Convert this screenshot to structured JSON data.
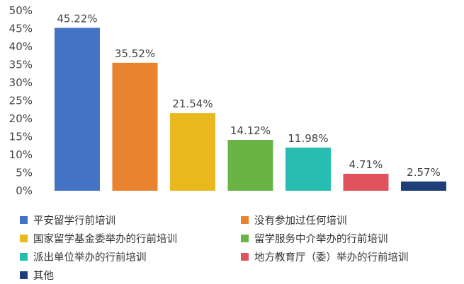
{
  "chart_data": {
    "type": "bar",
    "categories": [
      "平安留学行前培训",
      "没有参加过任何培训",
      "国家留学基金委举办的行前培训",
      "留学服务中介举办的行前培训",
      "派出单位举办的行前培训",
      "地方教育厅（委）举办的行前培训",
      "其他"
    ],
    "values": [
      45.22,
      35.52,
      21.54,
      14.12,
      11.98,
      4.71,
      2.57
    ],
    "data_labels": [
      "45.22%",
      "35.52%",
      "21.54%",
      "14.12%",
      "11.98%",
      "4.71%",
      "2.57%"
    ],
    "colors": [
      "#4472c4",
      "#e8832f",
      "#e9b81e",
      "#6ab446",
      "#27bdb0",
      "#e0525c",
      "#1e3f7a"
    ],
    "y_ticks": [
      0,
      5,
      10,
      15,
      20,
      25,
      30,
      35,
      40,
      45,
      50
    ],
    "y_tick_labels": [
      "0%",
      "5%",
      "10%",
      "15%",
      "20%",
      "25%",
      "30%",
      "35%",
      "40%",
      "45%",
      "50%"
    ],
    "ylim": [
      0,
      50
    ],
    "grid": false,
    "legend_position": "bottom",
    "title": "",
    "xlabel": "",
    "ylabel": ""
  }
}
